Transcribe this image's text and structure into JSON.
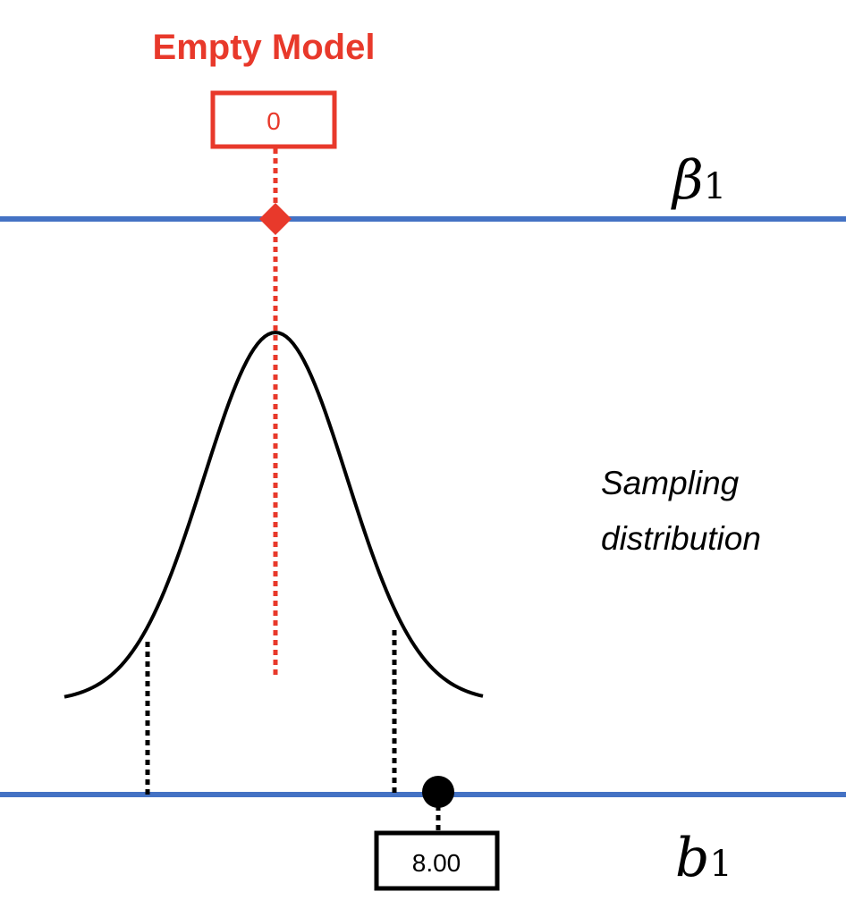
{
  "header": {
    "title": "Empty Model"
  },
  "model_box": {
    "label": "0"
  },
  "top_line": {
    "symbol": "β",
    "subscript": "1"
  },
  "annotation": {
    "lines": [
      "Sampling",
      "distribution"
    ]
  },
  "bottom_line": {
    "symbol": "b",
    "subscript": "1"
  },
  "sample_box": {
    "label": "8.00"
  }
}
